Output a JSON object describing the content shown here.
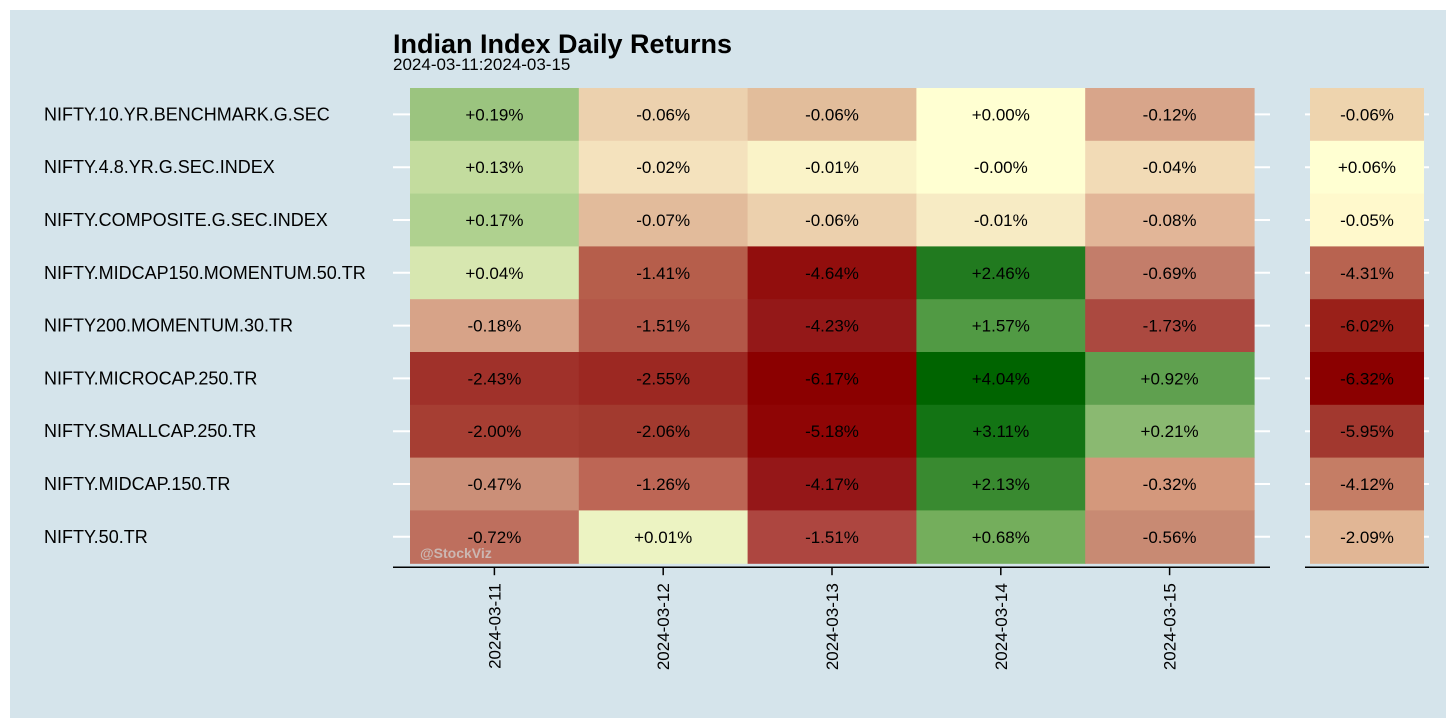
{
  "colors": {
    "background": "#d5e4eb",
    "frame": "#ffffff",
    "gridline": "#ffffff",
    "axis": "#000000"
  },
  "chart_data": [
    {
      "type": "heatmap",
      "title": "Indian Index Daily Returns",
      "subtitle": "2024-03-11:2024-03-15",
      "rows": [
        "NIFTY.10.YR.BENCHMARK.G.SEC",
        "NIFTY.4.8.YR.G.SEC.INDEX",
        "NIFTY.COMPOSITE.G.SEC.INDEX",
        "NIFTY.MIDCAP150.MOMENTUM.50.TR",
        "NIFTY200.MOMENTUM.30.TR",
        "NIFTY.MICROCAP.250.TR",
        "NIFTY.SMALLCAP.250.TR",
        "NIFTY.MIDCAP.150.TR",
        "NIFTY.50.TR"
      ],
      "columns": [
        "2024-03-11",
        "2024-03-12",
        "2024-03-13",
        "2024-03-14",
        "2024-03-15"
      ],
      "labels": [
        [
          "+0.19%",
          "-0.06%",
          "-0.06%",
          "+0.00%",
          "-0.12%"
        ],
        [
          "+0.13%",
          "-0.02%",
          "-0.01%",
          "-0.00%",
          "-0.04%"
        ],
        [
          "+0.17%",
          "-0.07%",
          "-0.06%",
          "-0.01%",
          "-0.08%"
        ],
        [
          "+0.04%",
          "-1.41%",
          "-4.64%",
          "+2.46%",
          "-0.69%"
        ],
        [
          "-0.18%",
          "-1.51%",
          "-4.23%",
          "+1.57%",
          "-1.73%"
        ],
        [
          "-2.43%",
          "-2.55%",
          "-6.17%",
          "+4.04%",
          "+0.92%"
        ],
        [
          "-2.00%",
          "-2.06%",
          "-5.18%",
          "+3.11%",
          "+0.21%"
        ],
        [
          "-0.47%",
          "-1.26%",
          "-4.17%",
          "+2.13%",
          "-0.32%"
        ],
        [
          "-0.72%",
          "+0.01%",
          "-1.51%",
          "+0.68%",
          "-0.56%"
        ]
      ],
      "colors": [
        [
          "#9bc47f",
          "#ecd1ae",
          "#e2bd9b",
          "#ffffd2",
          "#d8a58a"
        ],
        [
          "#c3dc9e",
          "#f4e2bd",
          "#faf3c8",
          "#ffffd2",
          "#f2dbb6"
        ],
        [
          "#afd18f",
          "#e2bb9b",
          "#ecd0ad",
          "#f7ebc4",
          "#e2b698"
        ],
        [
          "#d7e7b0",
          "#b65e4b",
          "#920e0d",
          "#217a1f",
          "#c37d6a"
        ],
        [
          "#d7a388",
          "#b35748",
          "#941818",
          "#519a44",
          "#ab4940"
        ],
        [
          "#a0312a",
          "#9c2822",
          "#8b0000",
          "#006400",
          "#5fa04f"
        ],
        [
          "#a63e33",
          "#a23a2f",
          "#8f0505",
          "#137414",
          "#8ab971"
        ],
        [
          "#cb8f78",
          "#bd6655",
          "#951718",
          "#398a30",
          "#d4987c"
        ],
        [
          "#be6f5e",
          "#ecf3c2",
          "#ad4640",
          "#74ae5c",
          "#c88a73"
        ]
      ]
    },
    {
      "type": "heatmap",
      "rows": [
        "NIFTY.10.YR.BENCHMARK.G.SEC",
        "NIFTY.4.8.YR.G.SEC.INDEX",
        "NIFTY.COMPOSITE.G.SEC.INDEX",
        "NIFTY.MIDCAP150.MOMENTUM.50.TR",
        "NIFTY200.MOMENTUM.30.TR",
        "NIFTY.MICROCAP.250.TR",
        "NIFTY.SMALLCAP.250.TR",
        "NIFTY.MIDCAP.150.TR",
        "NIFTY.50.TR"
      ],
      "labels": [
        "-0.06%",
        "+0.06%",
        "-0.05%",
        "-4.31%",
        "-6.02%",
        "-6.32%",
        "-5.95%",
        "-4.12%",
        "-2.09%"
      ],
      "colors": [
        "#eed4ae",
        "#ffffd2",
        "#fff9cc",
        "#b86350",
        "#9a2019",
        "#8b0000",
        "#a2382f",
        "#c57d65",
        "#e1b695"
      ]
    }
  ],
  "watermark": "@StockViz"
}
